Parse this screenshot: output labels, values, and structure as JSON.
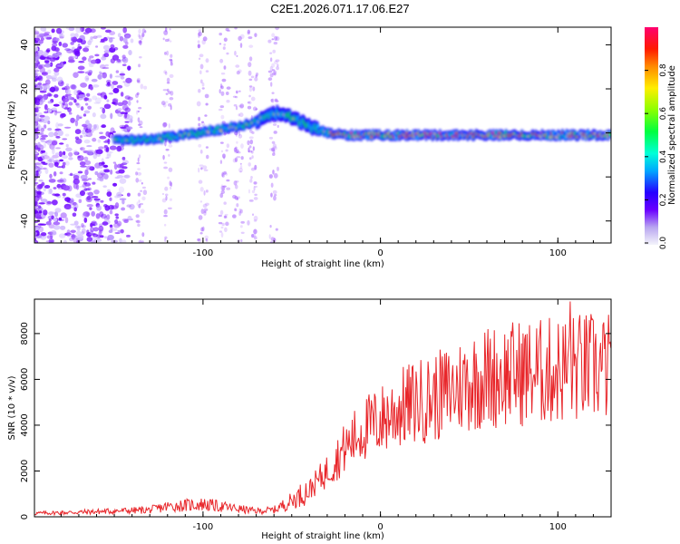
{
  "figure_title": "C2E1.2026.071.17.06.E27",
  "colors": {
    "snr_line": "#e8262a",
    "track_core": "#ff1e00",
    "track_mid": "#00ff40",
    "track_edge": "#1c00ff",
    "noise": "#7a00ff"
  },
  "chart_data": [
    {
      "type": "heatmap",
      "id": "spectrogram",
      "title": "",
      "xlabel": "Height of straight line (km)",
      "ylabel": "Frequency (Hz)",
      "xlim": [
        -195,
        130
      ],
      "ylim": [
        -50,
        48
      ],
      "xticks": [
        -100,
        0,
        100
      ],
      "yticks": [
        -40,
        -20,
        0,
        20,
        40
      ],
      "signal_track": {
        "description_points_x": [
          -150,
          -130,
          -110,
          -95,
          -80,
          -70,
          -62,
          -58,
          -50,
          -40,
          -30,
          -20,
          -10,
          0,
          20,
          50,
          80,
          110,
          130
        ],
        "description_points_y": [
          -3,
          -3,
          -1,
          1,
          3,
          5,
          8,
          9,
          7,
          3,
          0,
          -1,
          -1,
          -1,
          -1,
          -1,
          -1,
          -1,
          -1
        ]
      },
      "colorbar": {
        "label": "Normalized spectral amplitude",
        "range": [
          0,
          1
        ],
        "ticks": [
          0.0,
          0.2,
          0.4,
          0.6,
          0.8
        ],
        "tick_labels": [
          "0.0",
          "0.2",
          "0.4",
          "0.6",
          "0.8"
        ]
      }
    },
    {
      "type": "line",
      "id": "snr",
      "title": "",
      "xlabel": "Height of straight line (km)",
      "ylabel": "SNR (10 * v/v)",
      "xlim": [
        -195,
        130
      ],
      "ylim": [
        0,
        9500
      ],
      "xticks": [
        -100,
        0,
        100
      ],
      "yticks": [
        0,
        2000,
        4000,
        6000,
        8000
      ],
      "series": [
        {
          "name": "SNR",
          "x": [
            -195,
            -170,
            -150,
            -130,
            -120,
            -110,
            -100,
            -90,
            -80,
            -70,
            -60,
            -50,
            -40,
            -30,
            -20,
            -10,
            0,
            10,
            20,
            30,
            40,
            50,
            60,
            70,
            80,
            90,
            100,
            110,
            120,
            130
          ],
          "values": [
            150,
            200,
            250,
            300,
            450,
            500,
            550,
            450,
            350,
            250,
            300,
            700,
            1200,
            2000,
            3000,
            3800,
            4200,
            4700,
            5000,
            5200,
            5500,
            5900,
            6100,
            6200,
            6300,
            6300,
            6400,
            6500,
            6500,
            6500
          ],
          "peak": {
            "x": 107,
            "y": 9400
          }
        }
      ]
    }
  ]
}
